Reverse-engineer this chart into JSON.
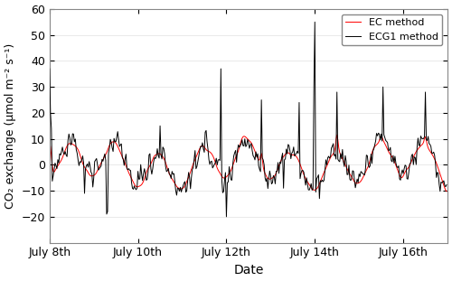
{
  "xlabel": "Date",
  "ylabel": "CO₂ exchange (μmol m⁻² s⁻¹)",
  "xlim_days": [
    8.0,
    17.0
  ],
  "ylim": [
    -30,
    60
  ],
  "yticks": [
    -20,
    -10,
    0,
    10,
    20,
    30,
    40,
    50,
    60
  ],
  "xtick_positions": [
    8,
    10,
    12,
    14,
    16
  ],
  "xtick_labels": [
    "July 8th",
    "July 10th",
    "July 12th",
    "July 14th",
    "July 16th"
  ],
  "ec_color": "#ff0000",
  "ecg_color": "#000000",
  "ec_label": "EC method",
  "ecg_label": "ECG1 method",
  "ec_linewidth": 0.7,
  "ecg_linewidth": 0.7,
  "legend_loc": "upper right",
  "legend_fontsize": 8,
  "background_color": "#ffffff",
  "random_seed": 42
}
